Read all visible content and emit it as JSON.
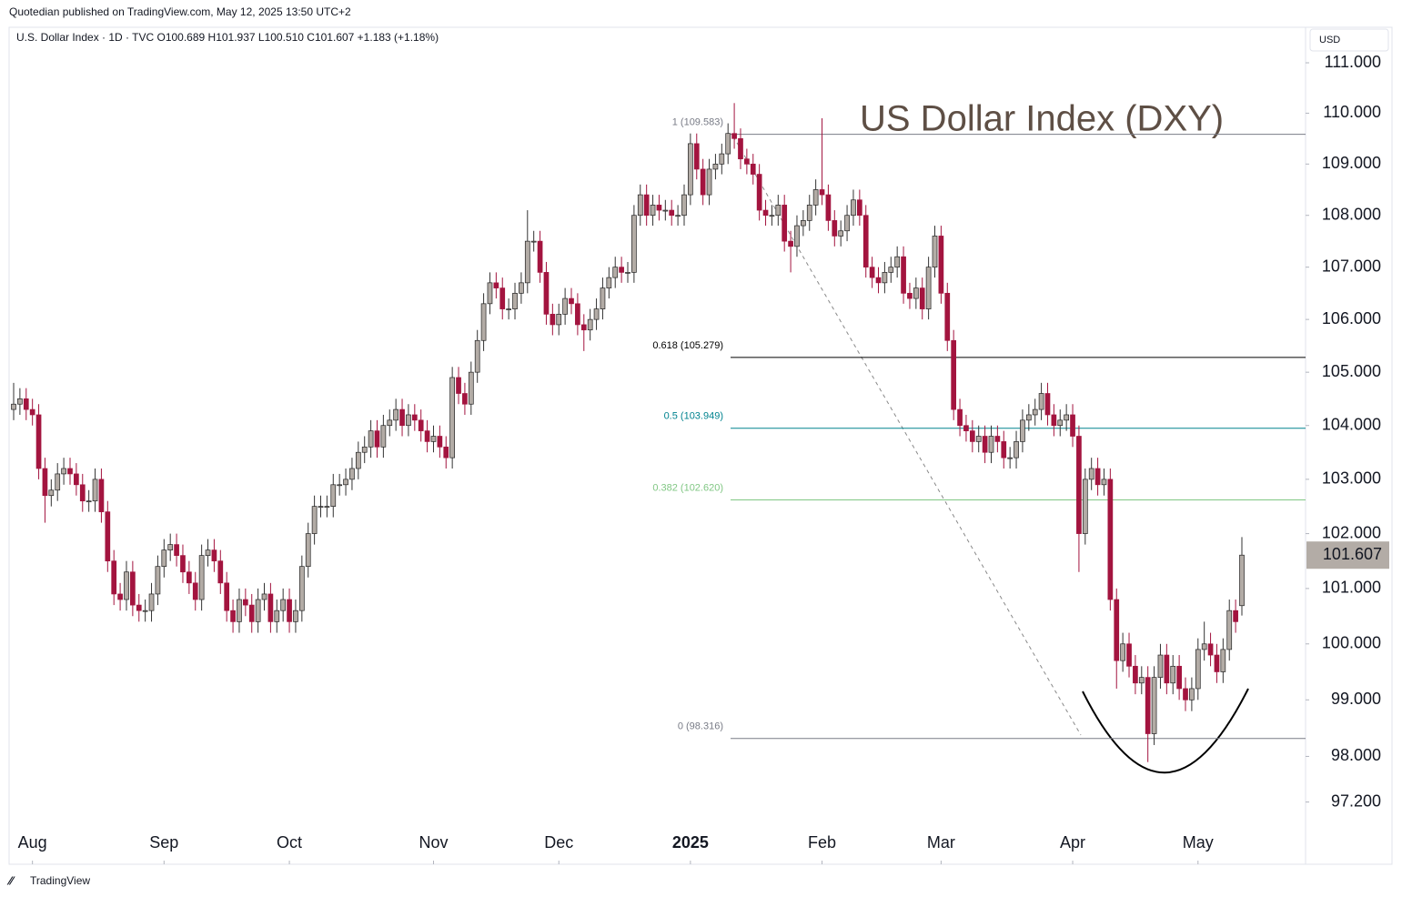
{
  "publisher": "Quotedian published on TradingView.com, May 12, 2025 13:50 UTC+2",
  "footer": "TradingView",
  "chart_data": {
    "type": "candlestick",
    "legend_text": "U.S. Dollar Index · 1D · TVC  O100.689  H101.937  L100.510  C101.607  +1.183 (+1.18%)",
    "title": "US Dollar Index (DXY)",
    "currency": "USD",
    "log_scale": true,
    "up_color": "#b3aca6",
    "down_color": "#a3143f",
    "title_color": "#5e4f45",
    "ylim": [
      96.12,
      111.71
    ],
    "yticks": [
      {
        "value": 111,
        "label": "111.000"
      },
      {
        "value": 110,
        "label": "110.000"
      },
      {
        "value": 109,
        "label": "109.000"
      },
      {
        "value": 108,
        "label": "108.000"
      },
      {
        "value": 107,
        "label": "107.000"
      },
      {
        "value": 106,
        "label": "106.000"
      },
      {
        "value": 105,
        "label": "105.000"
      },
      {
        "value": 104,
        "label": "104.000"
      },
      {
        "value": 103,
        "label": "103.000"
      },
      {
        "value": 102,
        "label": "102.000"
      },
      {
        "value": 101,
        "label": "101.000"
      },
      {
        "value": 100,
        "label": "100.000"
      },
      {
        "value": 99,
        "label": "99.000"
      },
      {
        "value": 98,
        "label": "98.000"
      },
      {
        "value": 97.2,
        "label": "97.200"
      }
    ],
    "xticks": [
      {
        "value": 3,
        "label": "Aug"
      },
      {
        "value": 24,
        "label": "Sep"
      },
      {
        "value": 44,
        "label": "Oct"
      },
      {
        "value": 67,
        "label": "Nov"
      },
      {
        "value": 87,
        "label": "Dec"
      },
      {
        "value": 108,
        "label": "2025"
      },
      {
        "value": 129,
        "label": "Feb"
      },
      {
        "value": 148,
        "label": "Mar"
      },
      {
        "value": 169,
        "label": "Apr"
      },
      {
        "value": 189,
        "label": "May"
      }
    ],
    "fib_levels": [
      {
        "label": "1 (109.583)",
        "value": 109.583,
        "color": "#787b86"
      },
      {
        "label": "0.618 (105.279)",
        "value": 105.279,
        "color": "#000000"
      },
      {
        "label": "0.5 (103.949)",
        "value": 103.949,
        "color": "#00838f"
      },
      {
        "label": "0.382 (102.620)",
        "value": 102.62,
        "color": "#81c784"
      },
      {
        "label": "0 (98.316)",
        "value": 98.316,
        "color": "#787b86"
      }
    ],
    "open": [
      104.3,
      104.4,
      104.5,
      104.3,
      104.2,
      103.2,
      102.7,
      102.8,
      103.1,
      103.2,
      103.1,
      102.9,
      102.6,
      102.6,
      103.0,
      102.4,
      101.5,
      100.9,
      100.8,
      101.3,
      100.7,
      100.6,
      100.6,
      100.9,
      101.4,
      101.7,
      101.8,
      101.6,
      101.3,
      101.1,
      100.8,
      101.6,
      101.7,
      101.5,
      101.1,
      100.6,
      100.4,
      100.8,
      100.7,
      100.4,
      100.8,
      100.9,
      100.4,
      100.6,
      100.8,
      100.4,
      100.6,
      101.4,
      102.0,
      102.5,
      102.5,
      102.5,
      102.9,
      102.9,
      103.0,
      103.2,
      103.5,
      103.6,
      103.9,
      103.6,
      104.0,
      104.1,
      104.3,
      104.0,
      104.2,
      104.1,
      103.9,
      103.7,
      103.8,
      103.6,
      103.4,
      104.9,
      104.6,
      104.4,
      105.0,
      105.6,
      106.3,
      106.7,
      106.6,
      106.2,
      106.2,
      106.5,
      106.7,
      107.5,
      107.5,
      106.9,
      106.1,
      105.9,
      106.1,
      106.4,
      106.3,
      105.9,
      105.8,
      106.0,
      106.2,
      106.6,
      106.8,
      107.0,
      106.9,
      106.9,
      108.0,
      108.4,
      108.0,
      108.2,
      108.1,
      108.1,
      108.0,
      108.0,
      108.4,
      109.4,
      108.9,
      108.4,
      108.9,
      109.0,
      109.2,
      109.6,
      109.5,
      109.1,
      109.0,
      108.8,
      108.1,
      108.0,
      108.0,
      108.2,
      107.5,
      107.4,
      107.8,
      107.9,
      108.2,
      108.5,
      108.4,
      107.9,
      107.6,
      107.7,
      108.0,
      108.3,
      108.0,
      107.0,
      106.8,
      106.7,
      106.9,
      107.0,
      107.2,
      106.5,
      106.4,
      106.6,
      106.2,
      107.0,
      107.6,
      106.5,
      105.6,
      104.3,
      104.0,
      103.9,
      103.7,
      103.8,
      103.5,
      103.8,
      103.7,
      103.4,
      103.4,
      103.7,
      104.1,
      104.2,
      104.3,
      104.6,
      104.2,
      104.0,
      104.1,
      104.2,
      103.8,
      102.0,
      103.0,
      103.2,
      102.9,
      103.0,
      100.8,
      99.7,
      100.0,
      99.6,
      99.3,
      99.4,
      98.4,
      99.4,
      99.8,
      99.3,
      99.6,
      99.2,
      99.0,
      99.2,
      99.9,
      100.0,
      99.8,
      99.5,
      99.9,
      100.6,
      100.689
    ],
    "high": [
      104.8,
      104.7,
      104.7,
      104.5,
      104.4,
      103.4,
      103.0,
      103.3,
      103.4,
      103.4,
      103.3,
      103.1,
      102.8,
      103.2,
      103.2,
      102.6,
      101.7,
      101.1,
      101.5,
      101.5,
      100.9,
      100.8,
      101.1,
      101.6,
      101.9,
      102.0,
      102.0,
      101.8,
      101.5,
      101.3,
      101.8,
      101.9,
      101.9,
      101.7,
      101.3,
      100.8,
      101.0,
      101.0,
      100.9,
      101.0,
      101.1,
      101.1,
      100.8,
      101.0,
      101.0,
      100.8,
      101.6,
      102.2,
      102.7,
      102.7,
      102.7,
      103.1,
      103.1,
      103.2,
      103.4,
      103.7,
      103.8,
      104.1,
      104.1,
      104.2,
      104.3,
      104.5,
      104.5,
      104.4,
      104.4,
      104.3,
      104.1,
      104.0,
      104.0,
      103.8,
      105.1,
      105.1,
      104.8,
      105.2,
      105.8,
      106.5,
      106.9,
      106.9,
      106.8,
      106.4,
      106.7,
      106.9,
      108.1,
      107.7,
      107.7,
      107.1,
      106.3,
      106.3,
      106.6,
      106.6,
      106.5,
      106.1,
      106.2,
      106.4,
      106.8,
      107.0,
      107.2,
      107.2,
      107.1,
      108.2,
      108.6,
      108.6,
      108.4,
      108.4,
      108.3,
      108.3,
      108.2,
      108.6,
      109.6,
      109.6,
      109.1,
      109.1,
      109.2,
      109.4,
      109.8,
      110.2,
      109.7,
      109.3,
      109.2,
      109.0,
      108.3,
      108.2,
      108.4,
      108.4,
      107.7,
      108.0,
      108.1,
      108.4,
      108.7,
      109.9,
      108.6,
      108.1,
      107.9,
      108.2,
      108.5,
      108.5,
      108.2,
      107.2,
      107.0,
      107.1,
      107.2,
      107.4,
      107.4,
      106.7,
      106.8,
      106.8,
      107.2,
      107.8,
      107.8,
      106.7,
      105.8,
      104.5,
      104.2,
      104.1,
      104.0,
      104.0,
      104.0,
      104.0,
      103.9,
      103.6,
      103.9,
      104.3,
      104.4,
      104.5,
      104.8,
      104.8,
      104.4,
      104.3,
      104.4,
      104.4,
      104.0,
      103.2,
      103.4,
      103.4,
      103.2,
      103.2,
      101.0,
      100.2,
      100.2,
      99.8,
      99.6,
      99.6,
      99.6,
      100.0,
      100.0,
      99.8,
      99.8,
      99.4,
      99.4,
      100.1,
      100.4,
      100.2,
      100.0,
      100.1,
      100.8,
      100.8,
      101.937
    ],
    "low": [
      104.1,
      104.2,
      104.1,
      104.0,
      103.0,
      102.2,
      102.5,
      102.6,
      102.9,
      102.9,
      102.7,
      102.4,
      102.4,
      102.4,
      102.2,
      101.3,
      100.7,
      100.6,
      100.6,
      100.5,
      100.4,
      100.4,
      100.4,
      100.7,
      101.2,
      101.5,
      101.4,
      101.1,
      100.9,
      100.6,
      100.6,
      101.4,
      101.3,
      100.9,
      100.4,
      100.2,
      100.2,
      100.5,
      100.2,
      100.2,
      100.6,
      100.2,
      100.2,
      100.4,
      100.2,
      100.2,
      100.4,
      101.2,
      101.8,
      102.3,
      102.3,
      102.3,
      102.7,
      102.7,
      102.8,
      103.0,
      103.3,
      103.4,
      103.4,
      103.4,
      103.8,
      103.9,
      103.8,
      103.8,
      103.9,
      103.7,
      103.5,
      103.5,
      103.4,
      103.2,
      103.2,
      104.4,
      104.2,
      104.2,
      104.8,
      105.4,
      106.1,
      106.4,
      106.0,
      106.0,
      106.0,
      106.3,
      106.5,
      107.3,
      106.7,
      105.9,
      105.7,
      105.7,
      105.9,
      106.1,
      105.7,
      105.4,
      105.6,
      105.8,
      106.0,
      106.4,
      106.6,
      106.7,
      106.7,
      106.7,
      107.8,
      107.8,
      107.8,
      107.9,
      107.9,
      107.8,
      107.8,
      107.8,
      108.2,
      108.7,
      108.2,
      108.2,
      108.7,
      108.8,
      109.0,
      109.3,
      108.9,
      108.8,
      108.6,
      107.9,
      107.8,
      107.8,
      107.8,
      107.3,
      106.9,
      107.2,
      107.6,
      107.7,
      108.0,
      108.2,
      107.7,
      107.4,
      107.4,
      107.5,
      107.8,
      107.8,
      106.8,
      106.6,
      106.5,
      106.5,
      106.7,
      106.8,
      106.3,
      106.2,
      106.2,
      106.0,
      106.0,
      106.8,
      106.3,
      105.4,
      104.1,
      103.8,
      103.7,
      103.5,
      103.5,
      103.3,
      103.3,
      103.5,
      103.2,
      103.2,
      103.2,
      103.5,
      103.9,
      104.0,
      104.1,
      104.0,
      103.8,
      103.8,
      103.9,
      103.6,
      101.3,
      101.8,
      102.8,
      102.7,
      102.7,
      100.6,
      99.2,
      99.5,
      99.4,
      99.1,
      99.1,
      97.9,
      98.2,
      99.2,
      99.1,
      99.1,
      99.0,
      98.8,
      98.8,
      99.0,
      99.7,
      99.6,
      99.3,
      99.3,
      99.7,
      100.2,
      100.51
    ],
    "close": [
      104.4,
      104.5,
      104.3,
      104.2,
      103.2,
      102.7,
      102.8,
      103.1,
      103.2,
      103.1,
      102.9,
      102.6,
      102.6,
      103.0,
      102.4,
      101.5,
      100.9,
      100.8,
      101.3,
      100.7,
      100.6,
      100.6,
      100.9,
      101.4,
      101.7,
      101.8,
      101.6,
      101.3,
      101.1,
      100.8,
      101.6,
      101.7,
      101.5,
      101.1,
      100.6,
      100.4,
      100.8,
      100.7,
      100.4,
      100.8,
      100.9,
      100.4,
      100.6,
      100.8,
      100.4,
      100.6,
      101.4,
      102.0,
      102.5,
      102.5,
      102.5,
      102.9,
      102.9,
      103.0,
      103.2,
      103.5,
      103.6,
      103.9,
      103.6,
      104.0,
      104.1,
      104.3,
      104.0,
      104.2,
      104.1,
      103.9,
      103.7,
      103.8,
      103.6,
      103.4,
      104.9,
      104.6,
      104.4,
      105.0,
      105.6,
      106.3,
      106.7,
      106.6,
      106.2,
      106.2,
      106.5,
      106.7,
      107.5,
      107.5,
      106.9,
      106.1,
      105.9,
      106.1,
      106.4,
      106.3,
      105.9,
      105.8,
      106.0,
      106.2,
      106.6,
      106.8,
      107.0,
      106.9,
      106.9,
      108.0,
      108.4,
      108.0,
      108.2,
      108.1,
      108.1,
      108.0,
      108.0,
      108.4,
      109.4,
      108.9,
      108.4,
      108.9,
      109.0,
      109.2,
      109.6,
      109.5,
      109.1,
      109.0,
      108.8,
      108.1,
      108.0,
      108.0,
      108.2,
      107.5,
      107.4,
      107.8,
      107.9,
      108.2,
      108.5,
      108.4,
      107.9,
      107.6,
      107.7,
      108.0,
      108.3,
      108.0,
      107.0,
      106.8,
      106.7,
      106.9,
      107.0,
      107.2,
      106.5,
      106.4,
      106.6,
      106.2,
      107.0,
      107.6,
      106.5,
      105.6,
      104.3,
      104.0,
      103.9,
      103.7,
      103.8,
      103.5,
      103.8,
      103.7,
      103.4,
      103.4,
      103.7,
      104.1,
      104.2,
      104.3,
      104.6,
      104.2,
      104.0,
      104.1,
      104.2,
      103.8,
      102.0,
      103.0,
      103.2,
      102.9,
      103.0,
      100.8,
      99.7,
      100.0,
      99.6,
      99.3,
      99.4,
      98.4,
      99.4,
      99.8,
      99.3,
      99.6,
      99.2,
      99.0,
      99.2,
      99.9,
      100.0,
      99.8,
      99.5,
      99.9,
      100.6,
      100.4,
      101.607
    ]
  }
}
